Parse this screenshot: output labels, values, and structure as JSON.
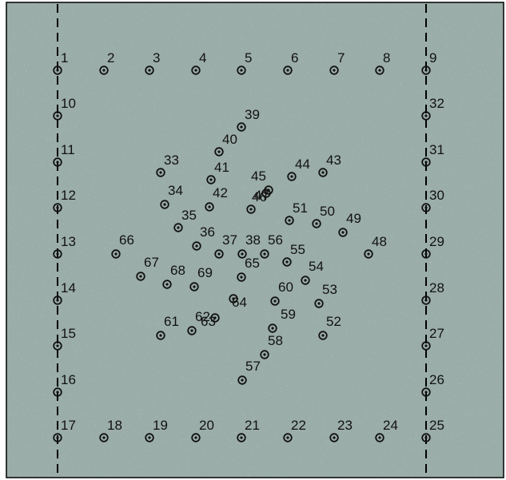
{
  "colors": {
    "background": "#9aada8",
    "marker": "#111111",
    "frame": "#000000",
    "guide_line": "#000000"
  },
  "markers": {
    "icon": "circled-dot-icon",
    "points": [
      {
        "label": "1"
      },
      {
        "label": "2"
      },
      {
        "label": "3"
      },
      {
        "label": "4"
      },
      {
        "label": "5"
      },
      {
        "label": "6"
      },
      {
        "label": "7"
      },
      {
        "label": "8"
      },
      {
        "label": "9"
      },
      {
        "label": "10"
      },
      {
        "label": "11"
      },
      {
        "label": "12"
      },
      {
        "label": "13"
      },
      {
        "label": "14"
      },
      {
        "label": "15"
      },
      {
        "label": "16"
      },
      {
        "label": "17"
      },
      {
        "label": "18"
      },
      {
        "label": "19"
      },
      {
        "label": "20"
      },
      {
        "label": "21"
      },
      {
        "label": "22"
      },
      {
        "label": "23"
      },
      {
        "label": "24"
      },
      {
        "label": "25"
      },
      {
        "label": "26"
      },
      {
        "label": "27"
      },
      {
        "label": "28"
      },
      {
        "label": "29"
      },
      {
        "label": "30"
      },
      {
        "label": "31"
      },
      {
        "label": "32"
      },
      {
        "label": "33"
      },
      {
        "label": "34"
      },
      {
        "label": "35"
      },
      {
        "label": "36"
      },
      {
        "label": "37"
      },
      {
        "label": "38"
      },
      {
        "label": "39"
      },
      {
        "label": "40"
      },
      {
        "label": "41"
      },
      {
        "label": "42"
      },
      {
        "label": "43"
      },
      {
        "label": "44"
      },
      {
        "label": "45"
      },
      {
        "label": "46"
      },
      {
        "label": "47"
      },
      {
        "label": "48"
      },
      {
        "label": "49"
      },
      {
        "label": "50"
      },
      {
        "label": "51"
      },
      {
        "label": "52"
      },
      {
        "label": "53"
      },
      {
        "label": "54"
      },
      {
        "label": "55"
      },
      {
        "label": "56"
      },
      {
        "label": "57"
      },
      {
        "label": "58"
      },
      {
        "label": "59"
      },
      {
        "label": "60"
      },
      {
        "label": "61"
      },
      {
        "label": "62"
      },
      {
        "label": "63"
      },
      {
        "label": "64"
      },
      {
        "label": "65"
      },
      {
        "label": "66"
      },
      {
        "label": "67"
      },
      {
        "label": "68"
      },
      {
        "label": "69"
      }
    ]
  }
}
